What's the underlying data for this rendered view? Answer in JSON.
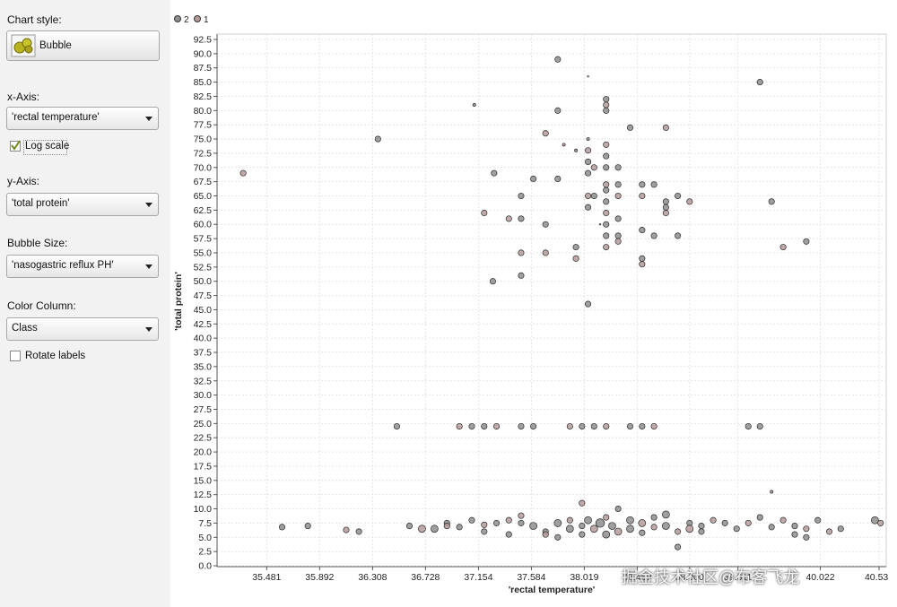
{
  "sidebar": {
    "chart_style_label": "Chart style:",
    "chart_style_value": "Bubble",
    "x_axis_label": "x-Axis:",
    "x_axis_value": "'rectal temperature'",
    "log_scale_label": "Log scale",
    "log_scale_checked": true,
    "y_axis_label": "y-Axis:",
    "y_axis_value": "'total protein'",
    "bubble_size_label": "Bubble Size:",
    "bubble_size_value": "'nasogastric reflux PH'",
    "color_column_label": "Color Column:",
    "color_column_value": "Class",
    "rotate_labels_label": "Rotate labels",
    "rotate_labels_checked": false
  },
  "watermark": "掘金技术社区@布客飞龙",
  "chart_data": {
    "type": "scatter",
    "subtype": "bubble",
    "xlabel": "'rectal temperature'",
    "ylabel": "'total protein'",
    "x_scale": "log",
    "xlim": [
      35.1,
      40.6
    ],
    "ylim": [
      0,
      93
    ],
    "grid": true,
    "legend_position": "top-left",
    "x_tick_labels": [
      "35.481",
      "35.892",
      "36.308",
      "36.728",
      "37.154",
      "37.584",
      "38.019",
      "38.459",
      "38.900",
      "39.311",
      "40.022",
      "40.537"
    ],
    "y_ticks": [
      0.0,
      2.5,
      5.0,
      7.5,
      10.0,
      12.5,
      15.0,
      17.5,
      20.0,
      22.5,
      25.0,
      27.5,
      30.0,
      32.5,
      35.0,
      37.5,
      40.0,
      42.5,
      45.0,
      47.5,
      50.0,
      52.5,
      55.0,
      57.5,
      60.0,
      62.5,
      65.0,
      67.5,
      70.0,
      72.5,
      75.0,
      77.5,
      80.0,
      82.5,
      85.0,
      87.5,
      90.0,
      92.5
    ],
    "y_tick_labels": [
      "0.0",
      "2.5",
      "5.0",
      "7.5",
      "10.0",
      "12.5",
      "15.0",
      "17.5",
      "20.0",
      "22.5",
      "25.0",
      "27.5",
      "30.0",
      "32.5",
      "35.0",
      "37.5",
      "40.0",
      "42.5",
      "45.0",
      "47.5",
      "50.0",
      "52.5",
      "55.0",
      "57.5",
      "60.0",
      "62.5",
      "65.0",
      "67.5",
      "70.0",
      "72.5",
      "75.0",
      "77.5",
      "80.0",
      "82.5",
      "85.0",
      "87.5",
      "90.0",
      "92.5"
    ],
    "series": [
      {
        "name": "2",
        "color": "#8e8e8e"
      },
      {
        "name": "1",
        "color": "#b59a9a"
      }
    ],
    "points": [
      {
        "x": 35.3,
        "y": 69.0,
        "s": 4
      },
      {
        "x": 36.35,
        "y": 75.0,
        "s": 4
      },
      {
        "x": 37.12,
        "y": 81.0,
        "s": 2
      },
      {
        "x": 37.2,
        "y": 62.0,
        "s": 4
      },
      {
        "x": 37.28,
        "y": 69.0,
        "s": 4
      },
      {
        "x": 37.27,
        "y": 50.0,
        "s": 4
      },
      {
        "x": 37.4,
        "y": 61.0,
        "s": 4
      },
      {
        "x": 37.5,
        "y": 65.0,
        "s": 4
      },
      {
        "x": 37.5,
        "y": 61.0,
        "s": 4
      },
      {
        "x": 37.5,
        "y": 55.0,
        "s": 4
      },
      {
        "x": 37.5,
        "y": 51.0,
        "s": 4
      },
      {
        "x": 37.6,
        "y": 68.0,
        "s": 4
      },
      {
        "x": 37.7,
        "y": 76.0,
        "s": 4
      },
      {
        "x": 37.8,
        "y": 80.0,
        "s": 4
      },
      {
        "x": 37.7,
        "y": 60.0,
        "s": 4
      },
      {
        "x": 37.7,
        "y": 55.0,
        "s": 4
      },
      {
        "x": 37.8,
        "y": 68.0,
        "s": 4
      },
      {
        "x": 37.8,
        "y": 89.0,
        "s": 4
      },
      {
        "x": 37.85,
        "y": 74.0,
        "s": 2
      },
      {
        "x": 37.95,
        "y": 73.0,
        "s": 2
      },
      {
        "x": 37.95,
        "y": 56.0,
        "s": 4
      },
      {
        "x": 37.95,
        "y": 54.0,
        "s": 4
      },
      {
        "x": 38.05,
        "y": 86.0,
        "s": 1
      },
      {
        "x": 38.05,
        "y": 75.0,
        "s": 2
      },
      {
        "x": 38.05,
        "y": 73.0,
        "s": 4
      },
      {
        "x": 38.05,
        "y": 71.0,
        "s": 4
      },
      {
        "x": 38.05,
        "y": 69.0,
        "s": 4
      },
      {
        "x": 38.05,
        "y": 65.0,
        "s": 4
      },
      {
        "x": 38.05,
        "y": 63.0,
        "s": 4
      },
      {
        "x": 38.05,
        "y": 46.0,
        "s": 4
      },
      {
        "x": 38.1,
        "y": 70.0,
        "s": 4
      },
      {
        "x": 38.1,
        "y": 65.0,
        "s": 4
      },
      {
        "x": 38.15,
        "y": 60.0,
        "s": 1
      },
      {
        "x": 38.2,
        "y": 81.0,
        "s": 4
      },
      {
        "x": 38.2,
        "y": 82.0,
        "s": 4
      },
      {
        "x": 38.2,
        "y": 80.0,
        "s": 4
      },
      {
        "x": 38.2,
        "y": 74.0,
        "s": 4
      },
      {
        "x": 38.2,
        "y": 72.0,
        "s": 4
      },
      {
        "x": 38.2,
        "y": 70.0,
        "s": 4
      },
      {
        "x": 38.2,
        "y": 67.0,
        "s": 4
      },
      {
        "x": 38.2,
        "y": 66.0,
        "s": 4
      },
      {
        "x": 38.2,
        "y": 64.0,
        "s": 4
      },
      {
        "x": 38.2,
        "y": 62.0,
        "s": 4
      },
      {
        "x": 38.2,
        "y": 60.0,
        "s": 4
      },
      {
        "x": 38.2,
        "y": 58.0,
        "s": 4
      },
      {
        "x": 38.2,
        "y": 56.0,
        "s": 4
      },
      {
        "x": 38.3,
        "y": 70.0,
        "s": 4
      },
      {
        "x": 38.3,
        "y": 67.0,
        "s": 4
      },
      {
        "x": 38.3,
        "y": 65.0,
        "s": 4
      },
      {
        "x": 38.3,
        "y": 61.0,
        "s": 4
      },
      {
        "x": 38.3,
        "y": 58.0,
        "s": 4
      },
      {
        "x": 38.3,
        "y": 57.0,
        "s": 4
      },
      {
        "x": 38.4,
        "y": 77.0,
        "s": 4
      },
      {
        "x": 38.5,
        "y": 67.0,
        "s": 4
      },
      {
        "x": 38.5,
        "y": 65.0,
        "s": 4
      },
      {
        "x": 38.5,
        "y": 59.0,
        "s": 4
      },
      {
        "x": 38.5,
        "y": 54.0,
        "s": 4
      },
      {
        "x": 38.5,
        "y": 53.0,
        "s": 4
      },
      {
        "x": 38.6,
        "y": 67.0,
        "s": 4
      },
      {
        "x": 38.6,
        "y": 58.0,
        "s": 4
      },
      {
        "x": 38.7,
        "y": 77.0,
        "s": 4
      },
      {
        "x": 38.7,
        "y": 64.0,
        "s": 4
      },
      {
        "x": 38.7,
        "y": 63.0,
        "s": 4
      },
      {
        "x": 38.7,
        "y": 62.0,
        "s": 4
      },
      {
        "x": 38.8,
        "y": 65.0,
        "s": 4
      },
      {
        "x": 38.8,
        "y": 58.0,
        "s": 4
      },
      {
        "x": 38.9,
        "y": 64.0,
        "s": 4
      },
      {
        "x": 39.5,
        "y": 85.0,
        "s": 4
      },
      {
        "x": 39.6,
        "y": 64.0,
        "s": 4
      },
      {
        "x": 39.7,
        "y": 56.0,
        "s": 4
      },
      {
        "x": 39.9,
        "y": 57.0,
        "s": 4
      },
      {
        "x": 36.5,
        "y": 24.5,
        "s": 4
      },
      {
        "x": 37.0,
        "y": 24.5,
        "s": 4
      },
      {
        "x": 37.1,
        "y": 24.5,
        "s": 4
      },
      {
        "x": 37.2,
        "y": 24.5,
        "s": 4
      },
      {
        "x": 37.3,
        "y": 24.5,
        "s": 4
      },
      {
        "x": 37.5,
        "y": 24.5,
        "s": 4
      },
      {
        "x": 37.6,
        "y": 24.5,
        "s": 4
      },
      {
        "x": 37.9,
        "y": 24.5,
        "s": 4
      },
      {
        "x": 38.0,
        "y": 24.5,
        "s": 4
      },
      {
        "x": 38.1,
        "y": 24.5,
        "s": 4
      },
      {
        "x": 38.2,
        "y": 24.5,
        "s": 4
      },
      {
        "x": 38.4,
        "y": 24.5,
        "s": 4
      },
      {
        "x": 38.5,
        "y": 24.5,
        "s": 4
      },
      {
        "x": 38.6,
        "y": 24.5,
        "s": 4
      },
      {
        "x": 39.4,
        "y": 24.5,
        "s": 4
      },
      {
        "x": 39.5,
        "y": 24.5,
        "s": 4
      },
      {
        "x": 39.6,
        "y": 13.0,
        "s": 2
      },
      {
        "x": 35.6,
        "y": 6.8,
        "s": 4
      },
      {
        "x": 35.8,
        "y": 7.0,
        "s": 4
      },
      {
        "x": 36.1,
        "y": 6.3,
        "s": 4
      },
      {
        "x": 36.2,
        "y": 6.0,
        "s": 4
      },
      {
        "x": 36.6,
        "y": 7.0,
        "s": 4
      },
      {
        "x": 36.7,
        "y": 6.5,
        "s": 5
      },
      {
        "x": 36.8,
        "y": 6.5,
        "s": 5
      },
      {
        "x": 36.9,
        "y": 7.5,
        "s": 4
      },
      {
        "x": 36.9,
        "y": 7.0,
        "s": 4
      },
      {
        "x": 37.0,
        "y": 6.8,
        "s": 4
      },
      {
        "x": 37.1,
        "y": 8.0,
        "s": 4
      },
      {
        "x": 37.2,
        "y": 7.2,
        "s": 4
      },
      {
        "x": 37.2,
        "y": 6.0,
        "s": 4
      },
      {
        "x": 37.3,
        "y": 7.5,
        "s": 4
      },
      {
        "x": 37.4,
        "y": 8.0,
        "s": 4
      },
      {
        "x": 37.4,
        "y": 5.5,
        "s": 4
      },
      {
        "x": 37.5,
        "y": 7.5,
        "s": 4
      },
      {
        "x": 37.5,
        "y": 8.8,
        "s": 4
      },
      {
        "x": 37.6,
        "y": 7.0,
        "s": 5
      },
      {
        "x": 37.7,
        "y": 6.0,
        "s": 4
      },
      {
        "x": 37.7,
        "y": 5.5,
        "s": 4
      },
      {
        "x": 37.8,
        "y": 7.5,
        "s": 5
      },
      {
        "x": 37.8,
        "y": 5.0,
        "s": 4
      },
      {
        "x": 37.9,
        "y": 8.0,
        "s": 4
      },
      {
        "x": 37.9,
        "y": 6.5,
        "s": 5
      },
      {
        "x": 38.0,
        "y": 7.0,
        "s": 4
      },
      {
        "x": 38.0,
        "y": 11.0,
        "s": 4
      },
      {
        "x": 38.0,
        "y": 5.5,
        "s": 4
      },
      {
        "x": 38.05,
        "y": 8.0,
        "s": 5
      },
      {
        "x": 38.1,
        "y": 6.5,
        "s": 5
      },
      {
        "x": 38.15,
        "y": 7.5,
        "s": 6
      },
      {
        "x": 38.2,
        "y": 5.5,
        "s": 5
      },
      {
        "x": 38.2,
        "y": 8.5,
        "s": 4
      },
      {
        "x": 38.25,
        "y": 7.0,
        "s": 5
      },
      {
        "x": 38.3,
        "y": 10.0,
        "s": 4
      },
      {
        "x": 38.3,
        "y": 6.0,
        "s": 5
      },
      {
        "x": 38.4,
        "y": 8.0,
        "s": 5
      },
      {
        "x": 38.4,
        "y": 6.5,
        "s": 5
      },
      {
        "x": 38.5,
        "y": 7.5,
        "s": 5
      },
      {
        "x": 38.5,
        "y": 5.8,
        "s": 4
      },
      {
        "x": 38.6,
        "y": 8.5,
        "s": 4
      },
      {
        "x": 38.6,
        "y": 6.8,
        "s": 4
      },
      {
        "x": 38.7,
        "y": 9.0,
        "s": 5
      },
      {
        "x": 38.7,
        "y": 7.0,
        "s": 5
      },
      {
        "x": 38.8,
        "y": 6.0,
        "s": 4
      },
      {
        "x": 38.8,
        "y": 3.3,
        "s": 4
      },
      {
        "x": 38.9,
        "y": 7.5,
        "s": 4
      },
      {
        "x": 38.9,
        "y": 6.5,
        "s": 5
      },
      {
        "x": 39.0,
        "y": 7.0,
        "s": 4
      },
      {
        "x": 39.0,
        "y": 6.0,
        "s": 4
      },
      {
        "x": 39.1,
        "y": 8.0,
        "s": 4
      },
      {
        "x": 39.2,
        "y": 7.5,
        "s": 4
      },
      {
        "x": 39.3,
        "y": 6.5,
        "s": 4
      },
      {
        "x": 39.4,
        "y": 7.5,
        "s": 4
      },
      {
        "x": 39.5,
        "y": 8.5,
        "s": 4
      },
      {
        "x": 39.6,
        "y": 6.8,
        "s": 4
      },
      {
        "x": 39.7,
        "y": 8.0,
        "s": 4
      },
      {
        "x": 39.8,
        "y": 7.0,
        "s": 4
      },
      {
        "x": 39.8,
        "y": 5.5,
        "s": 4
      },
      {
        "x": 39.9,
        "y": 6.5,
        "s": 4
      },
      {
        "x": 39.9,
        "y": 5.0,
        "s": 4
      },
      {
        "x": 40.0,
        "y": 8.0,
        "s": 4
      },
      {
        "x": 40.1,
        "y": 6.0,
        "s": 4
      },
      {
        "x": 40.2,
        "y": 6.5,
        "s": 4
      },
      {
        "x": 40.5,
        "y": 8.0,
        "s": 5
      },
      {
        "x": 40.55,
        "y": 7.5,
        "s": 4
      }
    ]
  }
}
